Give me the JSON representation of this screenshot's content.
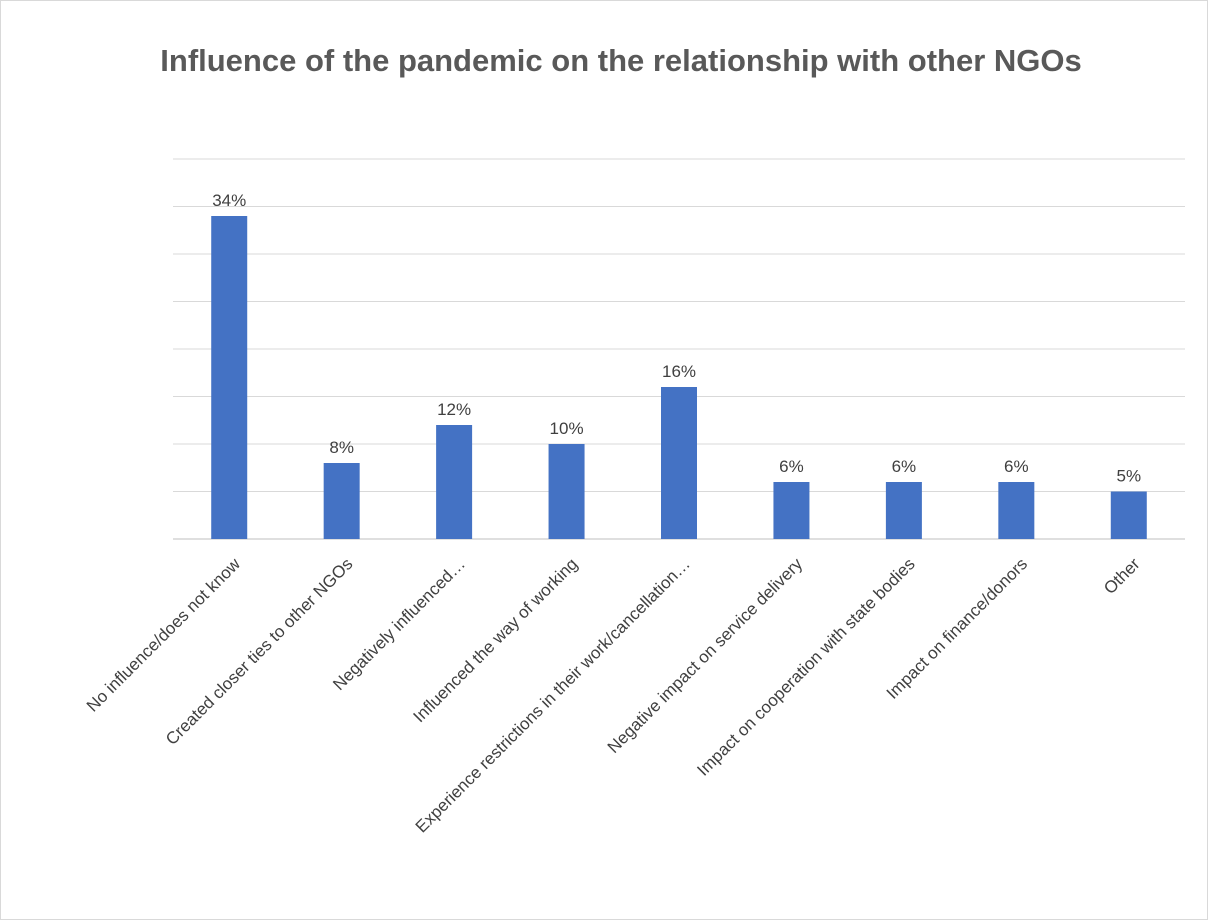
{
  "chart_data": {
    "type": "bar",
    "title": "Influence of the pandemic on the relationship with other NGOs",
    "categories": [
      "No influence/does not know",
      "Created closer ties to other NGOs",
      "Negatively influenced…",
      "Influenced the way of working",
      "Experience restrictions in their work/cancellation…",
      "Negative impact on service delivery",
      "Impact on cooperation with state bodies",
      "Impact on finance/donors",
      "Other"
    ],
    "values": [
      34,
      8,
      12,
      10,
      16,
      6,
      6,
      6,
      5
    ],
    "data_labels": [
      "34%",
      "8%",
      "12%",
      "10%",
      "16%",
      "6%",
      "6%",
      "6%",
      "5%"
    ],
    "ylim": [
      0,
      40
    ],
    "grid": true,
    "legend": "none",
    "colors": {
      "bar": "#4472c4"
    }
  }
}
